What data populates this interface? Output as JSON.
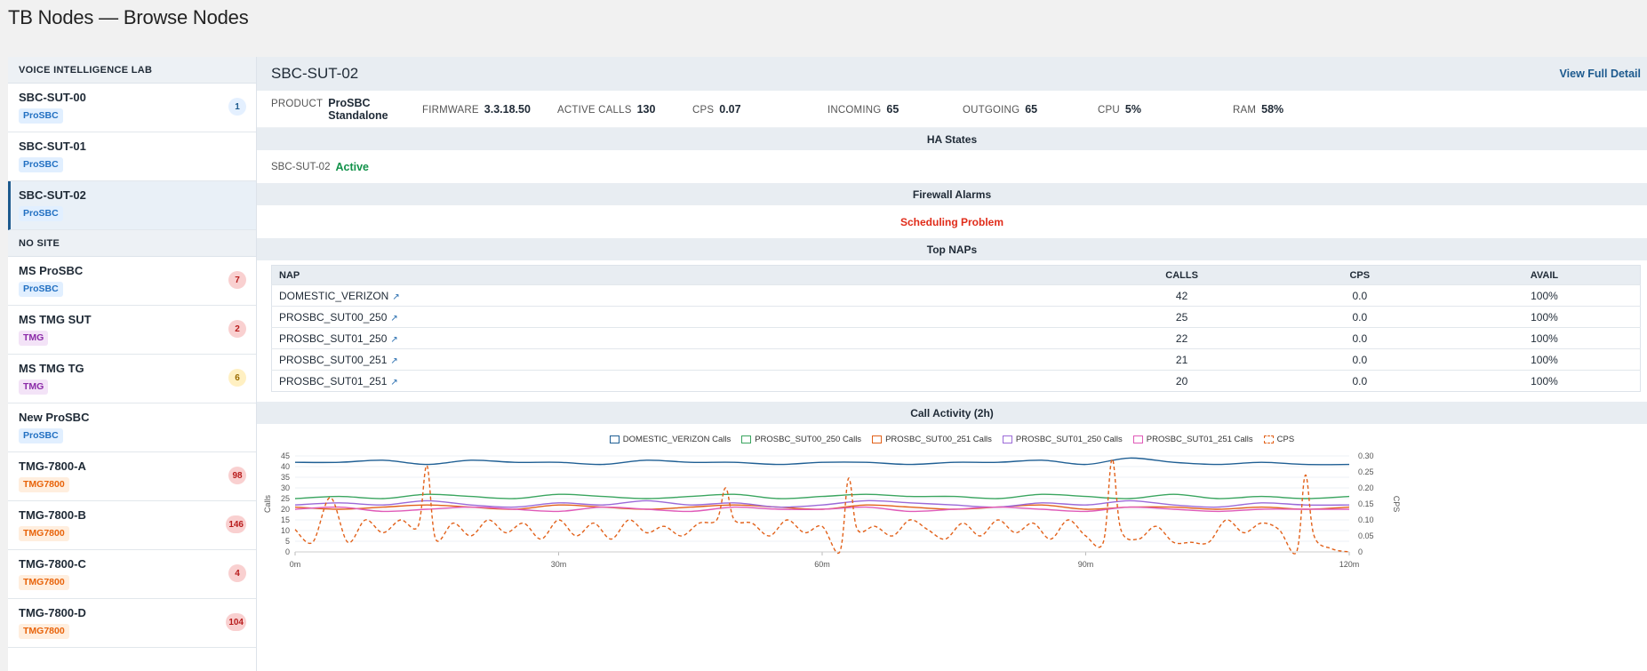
{
  "page_title": "TB Nodes — Browse Nodes",
  "sidebar": {
    "groups": [
      {
        "label": "VOICE INTELLIGENCE LAB",
        "nodes": [
          {
            "name": "SBC-SUT-00",
            "tag": "ProSBC",
            "tag_style": "prosbc",
            "count": "1",
            "badge_style": "blue"
          },
          {
            "name": "SBC-SUT-01",
            "tag": "ProSBC",
            "tag_style": "prosbc",
            "count": "",
            "badge_style": ""
          },
          {
            "name": "SBC-SUT-02",
            "tag": "ProSBC",
            "tag_style": "prosbc",
            "count": "",
            "badge_style": "",
            "selected": true
          }
        ]
      },
      {
        "label": "NO SITE",
        "nodes": [
          {
            "name": "MS ProSBC",
            "tag": "ProSBC",
            "tag_style": "prosbc",
            "count": "7",
            "badge_style": "red"
          },
          {
            "name": "MS TMG SUT",
            "tag": "TMG",
            "tag_style": "tmg",
            "count": "2",
            "badge_style": "red"
          },
          {
            "name": "MS TMG TG",
            "tag": "TMG",
            "tag_style": "tmg",
            "count": "6",
            "badge_style": "yellow"
          },
          {
            "name": "New ProSBC",
            "tag": "ProSBC",
            "tag_style": "prosbc",
            "count": "",
            "badge_style": ""
          },
          {
            "name": "TMG-7800-A",
            "tag": "TMG7800",
            "tag_style": "tmg7800",
            "count": "98",
            "badge_style": "red"
          },
          {
            "name": "TMG-7800-B",
            "tag": "TMG7800",
            "tag_style": "tmg7800",
            "count": "146",
            "badge_style": "red"
          },
          {
            "name": "TMG-7800-C",
            "tag": "TMG7800",
            "tag_style": "tmg7800",
            "count": "4",
            "badge_style": "red"
          },
          {
            "name": "TMG-7800-D",
            "tag": "TMG7800",
            "tag_style": "tmg7800",
            "count": "104",
            "badge_style": "red"
          }
        ]
      }
    ]
  },
  "main": {
    "title": "SBC-SUT-02",
    "view_full_detail": "View Full Detail",
    "stats": [
      {
        "label": "PRODUCT",
        "value": "ProSBC Standalone"
      },
      {
        "label": "FIRMWARE",
        "value": "3.3.18.50"
      },
      {
        "label": "ACTIVE CALLS",
        "value": "130"
      },
      {
        "label": "CPS",
        "value": "0.07"
      },
      {
        "label": "INCOMING",
        "value": "65"
      },
      {
        "label": "OUTGOING",
        "value": "65"
      },
      {
        "label": "CPU",
        "value": "5%"
      },
      {
        "label": "RAM",
        "value": "58%"
      }
    ],
    "ha": {
      "header": "HA States",
      "node": "SBC-SUT-02",
      "status": "Active"
    },
    "alarms": {
      "header": "Firewall Alarms",
      "message": "Scheduling Problem"
    },
    "naps": {
      "header": "Top NAPs",
      "columns": [
        "NAP",
        "CALLS",
        "CPS",
        "AVAIL"
      ],
      "rows": [
        {
          "nap": "DOMESTIC_VERIZON",
          "calls": "42",
          "cps": "0.0",
          "avail": "100%"
        },
        {
          "nap": "PROSBC_SUT00_250",
          "calls": "25",
          "cps": "0.0",
          "avail": "100%"
        },
        {
          "nap": "PROSBC_SUT01_250",
          "calls": "22",
          "cps": "0.0",
          "avail": "100%"
        },
        {
          "nap": "PROSBC_SUT00_251",
          "calls": "21",
          "cps": "0.0",
          "avail": "100%"
        },
        {
          "nap": "PROSBC_SUT01_251",
          "calls": "20",
          "cps": "0.0",
          "avail": "100%"
        }
      ]
    },
    "chart_header": "Call Activity (2h)"
  },
  "chart_data": {
    "type": "line",
    "title": "",
    "xlabel": "",
    "ylabel": "Calls",
    "y2label": "CPS",
    "x_ticks": [
      "0m",
      "30m",
      "60m",
      "90m",
      "120m"
    ],
    "xlim": [
      0,
      120
    ],
    "ylim": [
      0,
      45
    ],
    "y_ticks": [
      0,
      5,
      10,
      15,
      20,
      25,
      30,
      35,
      40,
      45
    ],
    "y2lim": [
      0,
      0.3
    ],
    "y2_ticks": [
      "0",
      "0.05",
      "0.10",
      "0.15",
      "0.20",
      "0.25",
      "0.30"
    ],
    "legend_position": "top-center",
    "series": [
      {
        "name": "DOMESTIC_VERIZON Calls",
        "axis": "left",
        "color": "#1f5f94",
        "dashed": false,
        "x": [
          0,
          5,
          10,
          15,
          20,
          25,
          30,
          35,
          40,
          45,
          50,
          55,
          60,
          65,
          70,
          75,
          80,
          85,
          90,
          95,
          100,
          105,
          110,
          115,
          120
        ],
        "values": [
          42,
          42,
          43,
          41,
          43,
          42,
          42,
          41,
          43,
          42,
          42,
          41,
          42,
          42,
          41,
          42,
          42,
          43,
          41,
          44,
          42,
          41,
          42,
          41,
          41
        ]
      },
      {
        "name": "PROSBC_SUT00_250 Calls",
        "axis": "left",
        "color": "#3aa55f",
        "dashed": false,
        "x": [
          0,
          5,
          10,
          15,
          20,
          25,
          30,
          35,
          40,
          45,
          50,
          55,
          60,
          65,
          70,
          75,
          80,
          85,
          90,
          95,
          100,
          105,
          110,
          115,
          120
        ],
        "values": [
          25,
          26,
          25,
          27,
          26,
          25,
          27,
          26,
          25,
          26,
          27,
          25,
          26,
          27,
          26,
          26,
          25,
          27,
          26,
          25,
          27,
          25,
          26,
          25,
          26
        ]
      },
      {
        "name": "PROSBC_SUT00_251 Calls",
        "axis": "left",
        "color": "#e2611a",
        "dashed": false,
        "x": [
          0,
          5,
          10,
          15,
          20,
          25,
          30,
          35,
          40,
          45,
          50,
          55,
          60,
          65,
          70,
          75,
          80,
          85,
          90,
          95,
          100,
          105,
          110,
          115,
          120
        ],
        "values": [
          21,
          20,
          21,
          22,
          21,
          20,
          22,
          21,
          20,
          21,
          22,
          21,
          20,
          22,
          21,
          20,
          21,
          22,
          20,
          21,
          21,
          20,
          21,
          20,
          21
        ]
      },
      {
        "name": "PROSBC_SUT01_250 Calls",
        "axis": "left",
        "color": "#9b6ad8",
        "dashed": false,
        "x": [
          0,
          5,
          10,
          15,
          20,
          25,
          30,
          35,
          40,
          45,
          50,
          55,
          60,
          65,
          70,
          75,
          80,
          85,
          90,
          95,
          100,
          105,
          110,
          115,
          120
        ],
        "values": [
          22,
          23,
          22,
          24,
          22,
          21,
          23,
          22,
          24,
          22,
          23,
          21,
          22,
          24,
          23,
          22,
          21,
          23,
          22,
          24,
          22,
          21,
          23,
          22,
          22
        ]
      },
      {
        "name": "PROSBC_SUT01_251 Calls",
        "axis": "left",
        "color": "#e05ab8",
        "dashed": false,
        "x": [
          0,
          5,
          10,
          15,
          20,
          25,
          30,
          35,
          40,
          45,
          50,
          55,
          60,
          65,
          70,
          75,
          80,
          85,
          90,
          95,
          100,
          105,
          110,
          115,
          120
        ],
        "values": [
          20,
          21,
          19,
          20,
          21,
          20,
          19,
          21,
          20,
          19,
          21,
          20,
          20,
          21,
          19,
          20,
          21,
          20,
          19,
          21,
          20,
          19,
          20,
          20,
          20
        ]
      },
      {
        "name": "CPS",
        "axis": "right",
        "color": "#e2611a",
        "dashed": true,
        "x": [
          0,
          2,
          4,
          6,
          8,
          10,
          12,
          14,
          15,
          16,
          18,
          20,
          22,
          24,
          26,
          28,
          30,
          32,
          34,
          36,
          38,
          40,
          42,
          44,
          46,
          48,
          49,
          50,
          52,
          54,
          56,
          58,
          60,
          62,
          63,
          64,
          66,
          68,
          70,
          72,
          74,
          76,
          78,
          80,
          82,
          84,
          86,
          88,
          90,
          92,
          93,
          94,
          96,
          98,
          100,
          102,
          104,
          106,
          108,
          110,
          112,
          114,
          115,
          116,
          118,
          120
        ],
        "values": [
          0.07,
          0.03,
          0.17,
          0.03,
          0.1,
          0.06,
          0.1,
          0.08,
          0.27,
          0.04,
          0.09,
          0.05,
          0.1,
          0.06,
          0.09,
          0.04,
          0.1,
          0.05,
          0.09,
          0.04,
          0.1,
          0.06,
          0.08,
          0.05,
          0.09,
          0.1,
          0.2,
          0.1,
          0.09,
          0.05,
          0.1,
          0.06,
          0.08,
          0.0,
          0.23,
          0.07,
          0.08,
          0.05,
          0.1,
          0.07,
          0.04,
          0.09,
          0.05,
          0.1,
          0.06,
          0.09,
          0.04,
          0.1,
          0.05,
          0.03,
          0.29,
          0.07,
          0.04,
          0.08,
          0.03,
          0.03,
          0.03,
          0.1,
          0.06,
          0.09,
          0.07,
          0.0,
          0.24,
          0.05,
          0.01,
          0.0
        ]
      }
    ]
  }
}
